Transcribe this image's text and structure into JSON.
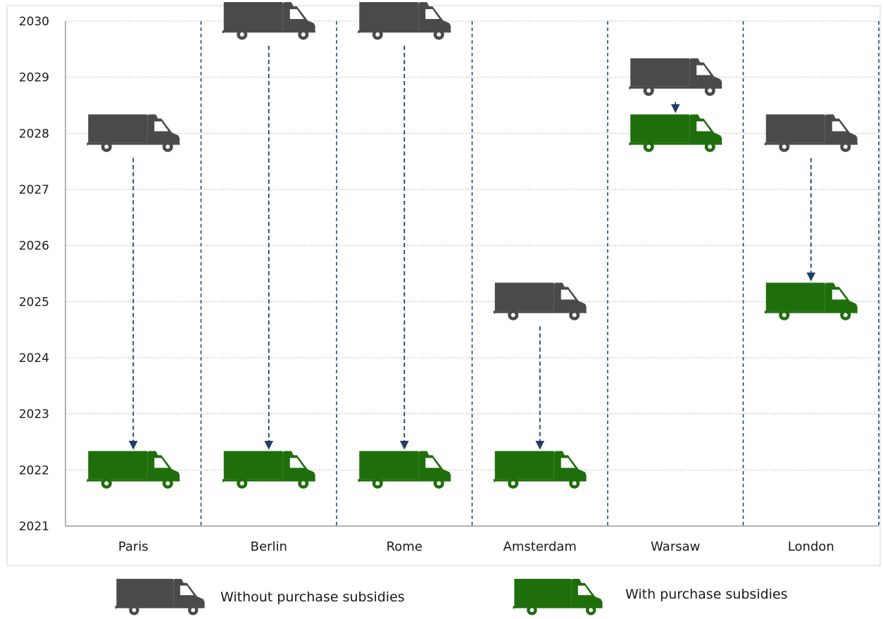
{
  "colors": {
    "without": "#4a4a4a",
    "with": "#1f6e0c",
    "arrow": "#1f3f66",
    "grid": "#bdbdbd",
    "divider": "#1f3f66",
    "frame": "#d0d0d0",
    "axis": "#9a9a9a"
  },
  "icons": {
    "without": "van-icon",
    "with": "van-icon"
  },
  "chart_data": {
    "type": "scatter",
    "title": "",
    "xlabel": "",
    "ylabel": "",
    "ylim": [
      2021,
      2030
    ],
    "y_ticks": [
      "2021",
      "2022",
      "2023",
      "2024",
      "2025",
      "2026",
      "2027",
      "2028",
      "2029",
      "2030"
    ],
    "grid": true,
    "legend_position": "bottom",
    "categories": [
      "Paris",
      "Berlin",
      "Rome",
      "Amsterdam",
      "Warsaw",
      "London"
    ],
    "series": [
      {
        "name": "Without purchase subsidies",
        "values": [
          2028,
          2030,
          2030,
          2025,
          2029,
          2028
        ]
      },
      {
        "name": "With purchase subsidies",
        "values": [
          2022,
          2022,
          2022,
          2022,
          2028,
          2025
        ]
      }
    ]
  }
}
